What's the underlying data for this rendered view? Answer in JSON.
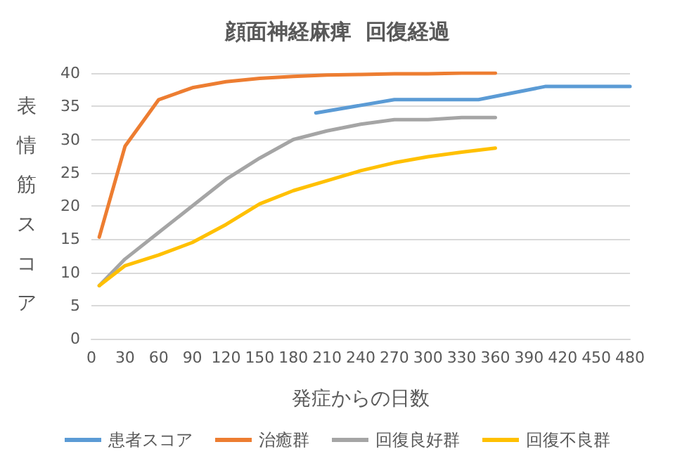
{
  "chart_data": {
    "type": "line",
    "title": "顔面神経麻痺  回復経過",
    "xlabel": "発症からの日数",
    "ylabel": "表情筋スコア",
    "xlim": [
      0,
      480
    ],
    "xticks": [
      0,
      30,
      60,
      90,
      120,
      150,
      180,
      210,
      240,
      270,
      300,
      330,
      360,
      390,
      420,
      450,
      480
    ],
    "ylim": [
      0,
      40
    ],
    "yticks": [
      0,
      5,
      10,
      15,
      20,
      25,
      30,
      35,
      40
    ],
    "grid": "y",
    "legend": "bottom",
    "marker": "none",
    "line_style": "solid",
    "series": [
      {
        "name": "患者スコア",
        "color": "#5b9bd5",
        "x": [
          200,
          270,
          345,
          405,
          480
        ],
        "values": [
          34,
          36,
          36,
          38,
          38
        ]
      },
      {
        "name": "治癒群",
        "color": "#ed7d31",
        "x": [
          7,
          30,
          60,
          90,
          120,
          150,
          180,
          210,
          240,
          270,
          300,
          330,
          360
        ],
        "values": [
          15.3,
          29,
          36,
          37.8,
          38.7,
          39.2,
          39.5,
          39.7,
          39.8,
          39.9,
          39.9,
          40,
          40
        ]
      },
      {
        "name": "回復良好群",
        "color": "#a5a5a5",
        "x": [
          7,
          30,
          60,
          90,
          120,
          150,
          180,
          210,
          240,
          270,
          300,
          330,
          360
        ],
        "values": [
          8,
          12,
          16,
          20,
          24,
          27.2,
          30,
          31.3,
          32.3,
          33,
          33,
          33.3,
          33.3
        ]
      },
      {
        "name": "回復不良群",
        "color": "#ffc000",
        "x": [
          7,
          30,
          60,
          90,
          120,
          150,
          180,
          210,
          240,
          270,
          300,
          330,
          360
        ],
        "values": [
          8,
          11,
          12.6,
          14.5,
          17.2,
          20.3,
          22.3,
          23.8,
          25.3,
          26.5,
          27.4,
          28.1,
          28.7
        ]
      }
    ]
  }
}
